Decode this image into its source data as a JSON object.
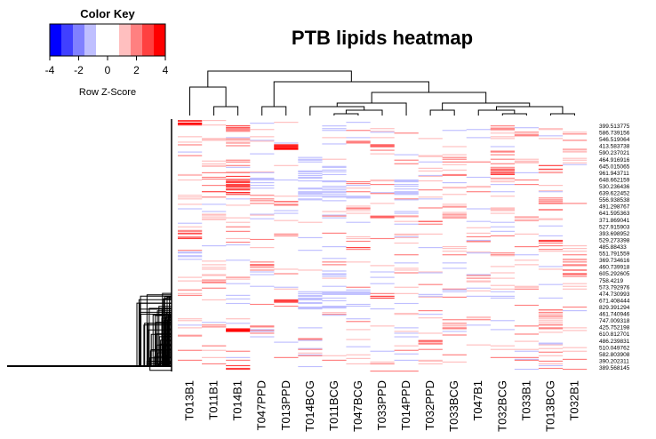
{
  "chart_data": {
    "type": "heatmap",
    "title": "PTB lipids heatmap",
    "color_key": {
      "title": "Color Key",
      "xlabel": "Row Z-Score",
      "range": [
        -4,
        4
      ],
      "ticks": [
        "-4",
        "-2",
        "0",
        "2",
        "4"
      ],
      "colors": [
        "#0000ff",
        "#4040ff",
        "#8080ff",
        "#bfbfff",
        "#ffffff",
        "#ffffff",
        "#ffbfbf",
        "#ff8080",
        "#ff4040",
        "#ff0000"
      ]
    },
    "columns": [
      "T013B1",
      "T011B1",
      "T014B1",
      "T047PPD",
      "T013PPD",
      "T014BCG",
      "T011BCG",
      "T047BCG",
      "T033PPD",
      "T014PPD",
      "T032PPD",
      "T033BCG",
      "T047B1",
      "T032BCG",
      "T033B1",
      "T013BCG",
      "T032B1"
    ],
    "row_labels": [
      "399.513775",
      "586.739156",
      "546.519064",
      "413.583738",
      "590.237021",
      "464.916916",
      "645.015065",
      "961.943711",
      "648.662159",
      "530.236436",
      "639.622452",
      "556.938538",
      "491.298767",
      "641.595363",
      "371.869041",
      "527.915903",
      "393.698952",
      "529.273398",
      "485.88433",
      "551.791559",
      "369.734616",
      "460.739918",
      "605.292605",
      "758.4219",
      "573.792976",
      "474.730993",
      "671.408444",
      "829.391294",
      "461.740946",
      "747.009318",
      "425.752198",
      "610.812701",
      "486.239831",
      "510.049762",
      "582.803908",
      "390.202311",
      "389.568145"
    ],
    "row_count": 280,
    "matrix_bands": [
      [
        4,
        1,
        0,
        0,
        0,
        0,
        0,
        0,
        0,
        0,
        0,
        0,
        0,
        0,
        0,
        0,
        0
      ],
      [
        0,
        0,
        3,
        0,
        0,
        0,
        -1,
        0,
        1,
        0,
        0,
        0,
        0,
        2,
        0,
        1,
        0
      ],
      [
        0,
        0,
        0,
        0,
        0,
        0,
        0,
        0,
        0,
        0,
        0,
        0,
        0,
        1,
        2,
        0,
        0
      ],
      [
        0,
        1,
        2,
        0,
        0,
        -1,
        0,
        2,
        0,
        0,
        0,
        0,
        0,
        0,
        0,
        2,
        0
      ],
      [
        2,
        0,
        0,
        0,
        4,
        0,
        -1,
        0,
        3,
        0,
        0,
        0,
        0,
        0,
        0,
        0,
        0
      ],
      [
        0,
        0,
        0,
        0,
        0,
        0,
        0,
        0,
        0,
        0,
        1,
        0,
        0,
        3,
        0,
        2,
        0
      ],
      [
        0,
        0,
        0,
        0,
        0,
        -1,
        0,
        0,
        0,
        0,
        0,
        2,
        0,
        0,
        1,
        0,
        1
      ],
      [
        0,
        1,
        0,
        0,
        0,
        0,
        0,
        0,
        0,
        0,
        0,
        2,
        0,
        2,
        0,
        3,
        0
      ],
      [
        1,
        0,
        0,
        0,
        0,
        -1,
        -1,
        0,
        0,
        0,
        0,
        2,
        0,
        3,
        0,
        2,
        0
      ],
      [
        0,
        2,
        3,
        -1,
        0,
        -1,
        -1,
        0,
        1,
        -1,
        0,
        0,
        0,
        2,
        0,
        0,
        0
      ],
      [
        0,
        0,
        3,
        -1,
        0,
        -1,
        -1,
        0,
        0,
        -1,
        0,
        0,
        1,
        0,
        0,
        1,
        0
      ],
      [
        0,
        3,
        4,
        0,
        0,
        -1,
        -1,
        0,
        0,
        -1,
        0,
        0,
        0,
        0,
        0,
        0,
        0
      ],
      [
        1,
        0,
        0,
        2,
        0,
        -1,
        -1,
        -1,
        0,
        0,
        0,
        0,
        0,
        0,
        0,
        2,
        0
      ],
      [
        0,
        0,
        0,
        0,
        3,
        0,
        0,
        0,
        0,
        0,
        0,
        2,
        0,
        0,
        0,
        3,
        0
      ],
      [
        0,
        0,
        0,
        0,
        0,
        0,
        0,
        2,
        0,
        0,
        0,
        0,
        0,
        1,
        0,
        3,
        0
      ],
      [
        0,
        1,
        0,
        0,
        0,
        0,
        0,
        0,
        3,
        0,
        0,
        2,
        0,
        0,
        2,
        1,
        0
      ],
      [
        0,
        0,
        0,
        0,
        0,
        0,
        0,
        0,
        0,
        0,
        3,
        0,
        0,
        0,
        0,
        0,
        0
      ],
      [
        2,
        0,
        3,
        0,
        0,
        0,
        0,
        0,
        0,
        0,
        0,
        0,
        0,
        0,
        0,
        0,
        0
      ],
      [
        3,
        0,
        0,
        0,
        0,
        0,
        0,
        0,
        0,
        0,
        0,
        0,
        2,
        0,
        0,
        0,
        0
      ],
      [
        0,
        0,
        0,
        0,
        0,
        0,
        0,
        0,
        0,
        0,
        0,
        0,
        0,
        0,
        0,
        3,
        0
      ],
      [
        0,
        0,
        0,
        0,
        0,
        0,
        0,
        3,
        0,
        0,
        0,
        2,
        0,
        0,
        0,
        2,
        1
      ],
      [
        0,
        0,
        0,
        0,
        0,
        0,
        0,
        0,
        0,
        0,
        0,
        2,
        0,
        2,
        0,
        0,
        0
      ],
      [
        0,
        0,
        0,
        2,
        0,
        0,
        0,
        0,
        0,
        0,
        0,
        0,
        0,
        0,
        0,
        0,
        2
      ],
      [
        0,
        2,
        0,
        3,
        0,
        0,
        0,
        0,
        0,
        0,
        0,
        0,
        0,
        0,
        0,
        0,
        3
      ],
      [
        0,
        0,
        0,
        0,
        0,
        0,
        -1,
        0,
        0,
        0,
        0,
        0,
        0,
        0,
        0,
        0,
        3
      ],
      [
        1,
        3,
        2,
        0,
        0,
        0,
        0,
        0,
        0,
        0,
        0,
        0,
        2,
        0,
        0,
        0,
        0
      ],
      [
        0,
        0,
        0,
        0,
        0,
        0,
        0,
        0,
        0,
        0,
        0,
        0,
        0,
        2,
        2,
        0,
        1
      ],
      [
        2,
        0,
        0,
        0,
        0,
        -1,
        -1,
        -1,
        0,
        0,
        0,
        0,
        0,
        0,
        0,
        0,
        0
      ],
      [
        0,
        0,
        0,
        0,
        4,
        -1,
        -1,
        0,
        4,
        0,
        0,
        0,
        0,
        0,
        0,
        0,
        0
      ],
      [
        0,
        0,
        0,
        0,
        3,
        -1,
        -1,
        -1,
        0,
        0,
        0,
        0,
        0,
        0,
        0,
        0,
        0
      ],
      [
        0,
        0,
        0,
        0,
        0,
        0,
        0,
        0,
        0,
        0,
        0,
        0,
        0,
        0,
        0,
        2,
        0
      ],
      [
        1,
        0,
        0,
        0,
        0,
        0,
        -1,
        0,
        0,
        0,
        2,
        0,
        2,
        0,
        0,
        2,
        0
      ],
      [
        0,
        0,
        0,
        3,
        0,
        0,
        0,
        0,
        0,
        0,
        0,
        2,
        0,
        0,
        0,
        2,
        0
      ],
      [
        0,
        0,
        4,
        0,
        0,
        -1,
        0,
        0,
        0,
        0,
        0,
        0,
        0,
        0,
        0,
        0,
        2
      ],
      [
        2,
        0,
        0,
        0,
        0,
        0,
        0,
        0,
        0,
        0,
        0,
        2,
        0,
        0,
        0,
        0,
        0
      ],
      [
        0,
        0,
        0,
        0,
        0,
        0,
        0,
        0,
        0,
        0,
        3,
        0,
        0,
        2,
        2,
        0,
        0
      ],
      [
        2,
        0,
        0,
        0,
        0,
        0,
        0,
        0,
        0,
        0,
        0,
        0,
        0,
        0,
        0,
        0,
        2
      ],
      [
        0,
        2,
        0,
        0,
        0,
        0,
        0,
        0,
        0,
        0,
        0,
        0,
        0,
        0,
        0,
        0,
        0
      ],
      [
        3,
        2,
        0,
        0,
        0,
        0,
        0,
        0,
        0,
        0,
        0,
        0,
        0,
        0,
        0,
        2,
        0
      ],
      [
        0,
        0,
        3,
        0,
        0,
        0,
        0,
        0,
        0,
        0,
        0,
        0,
        0,
        0,
        0,
        0,
        0
      ]
    ]
  }
}
